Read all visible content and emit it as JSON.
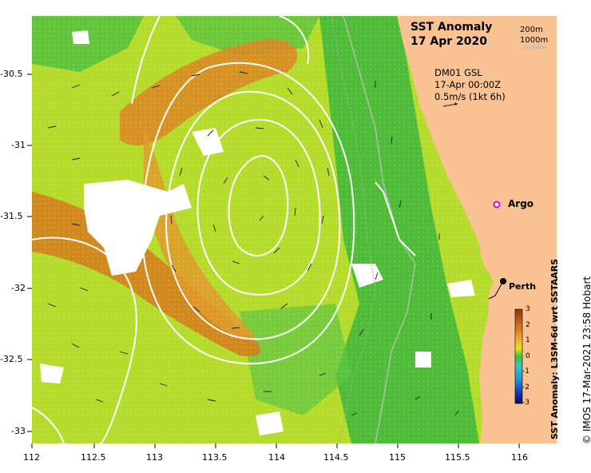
{
  "map": {
    "title_line1": "SST Anomaly",
    "title_line2": "17 Apr 2020",
    "bathy_legend": [
      "200m",
      "1000m"
    ],
    "model_line1": "DM01 GSL",
    "model_line2": "17-Apr 00:00Z",
    "model_line3": "0.5m/s (1kt 6h)",
    "markers": {
      "argo": "Argo",
      "perth": "Perth"
    },
    "x_ticks": [
      "112",
      "112.5",
      "113",
      "113.5",
      "114",
      "114.5",
      "115",
      "115.5",
      "116"
    ],
    "y_ticks": [
      "-30.5",
      "-31",
      "-31.5",
      "-32",
      "-32.5",
      "-33"
    ],
    "colorbar": {
      "label": "SST Anomaly: L3SM-6d wrt SSTAARS",
      "ticks": [
        "3",
        "2",
        "1",
        "0",
        "-1",
        "-2",
        "-3"
      ],
      "min": -3,
      "max": 3
    },
    "credit": "© IMOS 17-Mar-2021 23:58 Hobart",
    "colors": {
      "land": "#f9c293",
      "ocean_warm": "#d07a1a",
      "ocean_mid": "#a9d82b",
      "ocean_cool": "#2ea838",
      "contour": "#ffffff"
    }
  }
}
